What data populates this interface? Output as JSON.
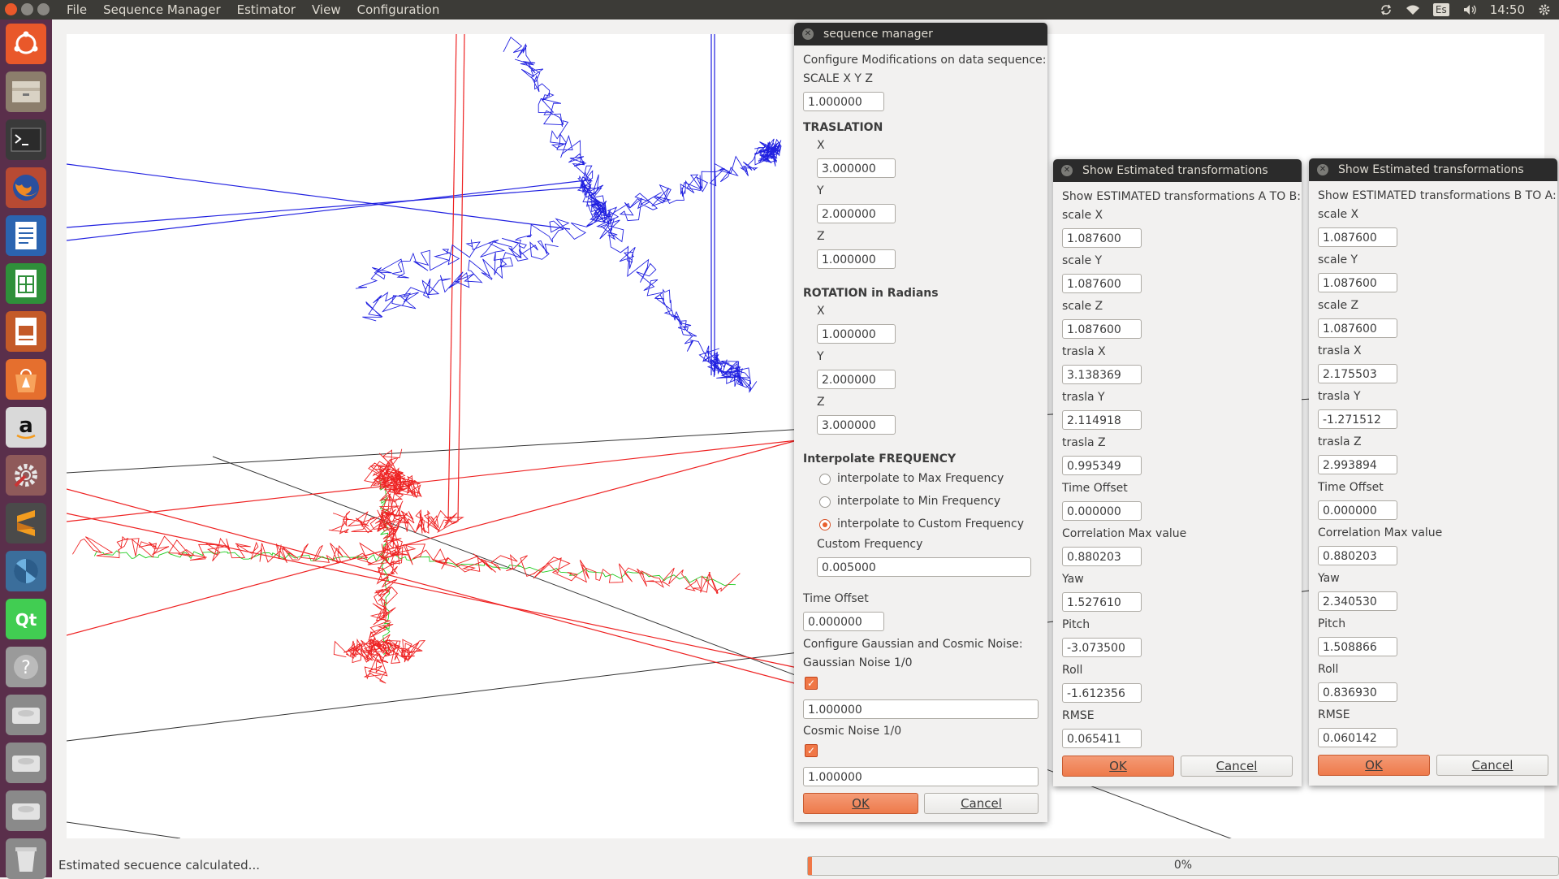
{
  "topbar": {
    "menus": [
      "File",
      "Sequence Manager",
      "Estimator",
      "View",
      "Configuration"
    ],
    "keyboard_layout": "Es",
    "clock": "14:50"
  },
  "launcher": {
    "items": [
      {
        "name": "ubuntu-home-icon"
      },
      {
        "name": "files-icon"
      },
      {
        "name": "terminal-icon"
      },
      {
        "name": "firefox-icon"
      },
      {
        "name": "writer-icon"
      },
      {
        "name": "calc-icon"
      },
      {
        "name": "impress-icon"
      },
      {
        "name": "software-center-icon"
      },
      {
        "name": "amazon-icon"
      },
      {
        "name": "system-settings-icon"
      },
      {
        "name": "sublime-icon"
      },
      {
        "name": "shutter-icon"
      },
      {
        "name": "qt-creator-icon"
      },
      {
        "name": "help-icon"
      },
      {
        "name": "drive-icon"
      },
      {
        "name": "drive-icon"
      },
      {
        "name": "drive-icon"
      },
      {
        "name": "trash-icon"
      }
    ]
  },
  "status": {
    "text": "Estimated secuence calculated...",
    "progress_label": "0%",
    "progress_fraction": 0.005
  },
  "colors": {
    "accent": "#f07746",
    "topbar": "#3c3b37",
    "launcher": "#5a2f4b",
    "series_a": "#2020e0",
    "series_b": "#ee2222",
    "series_c": "#22cc22"
  },
  "sequence_manager": {
    "title": "sequence manager",
    "intro": "Configure Modifications on data sequence:",
    "scale_label": "SCALE X Y Z",
    "scale": "1.000000",
    "translation_heading": "TRASLATION",
    "x_label": "X",
    "y_label": "Y",
    "z_label": "Z",
    "trans_x": "3.000000",
    "trans_y": "2.000000",
    "trans_z": "1.000000",
    "rotation_heading": "ROTATION in Radians",
    "rot_x": "1.000000",
    "rot_y": "2.000000",
    "rot_z": "3.000000",
    "interp_heading": "Interpolate FREQUENCY",
    "opt_max": "interpolate to Max Frequency",
    "opt_min": "interpolate to Min Frequency",
    "opt_custom": "interpolate to Custom Frequency",
    "custom_freq_label": "Custom Frequency",
    "custom_freq": "0.005000",
    "time_offset_label": "Time Offset",
    "time_offset": "0.000000",
    "noise_heading": "Configure Gaussian and Cosmic Noise:",
    "gaussian_label": "Gaussian Noise 1/0",
    "gaussian_value": "1.000000",
    "cosmic_label": "Cosmic Noise 1/0",
    "cosmic_value": "1.000000",
    "check_mark": "✓",
    "ok": "OK",
    "cancel": "Cancel"
  },
  "est_ab": {
    "title": "Show Estimated transformations",
    "heading": "Show ESTIMATED transformations A TO B:",
    "fields": [
      {
        "label": "scale X",
        "value": "1.087600"
      },
      {
        "label": "scale Y",
        "value": "1.087600"
      },
      {
        "label": "scale Z",
        "value": "1.087600"
      },
      {
        "label": "trasla X",
        "value": "3.138369"
      },
      {
        "label": "trasla Y",
        "value": "2.114918"
      },
      {
        "label": "trasla Z",
        "value": "0.995349"
      },
      {
        "label": "Time Offset",
        "value": "0.000000"
      },
      {
        "label": "Correlation Max value",
        "value": "0.880203"
      },
      {
        "label": "Yaw",
        "value": "1.527610"
      },
      {
        "label": "Pitch",
        "value": "-3.073500"
      },
      {
        "label": "Roll",
        "value": "-1.612356"
      },
      {
        "label": "RMSE",
        "value": "0.065411"
      }
    ],
    "ok": "OK",
    "cancel": "Cancel"
  },
  "est_ba": {
    "title": "Show Estimated transformations",
    "heading": "Show ESTIMATED transformations B TO A:",
    "fields": [
      {
        "label": "scale X",
        "value": "1.087600"
      },
      {
        "label": "scale Y",
        "value": "1.087600"
      },
      {
        "label": "scale Z",
        "value": "1.087600"
      },
      {
        "label": "trasla X",
        "value": "2.175503"
      },
      {
        "label": "trasla Y",
        "value": "-1.271512"
      },
      {
        "label": "trasla Z",
        "value": "2.993894"
      },
      {
        "label": "Time Offset",
        "value": "0.000000"
      },
      {
        "label": "Correlation Max value",
        "value": "0.880203"
      },
      {
        "label": "Yaw",
        "value": "2.340530"
      },
      {
        "label": "Pitch",
        "value": "1.508866"
      },
      {
        "label": "Roll",
        "value": "0.836930"
      },
      {
        "label": "RMSE",
        "value": "0.060142"
      }
    ],
    "ok": "OK",
    "cancel": "Cancel"
  }
}
